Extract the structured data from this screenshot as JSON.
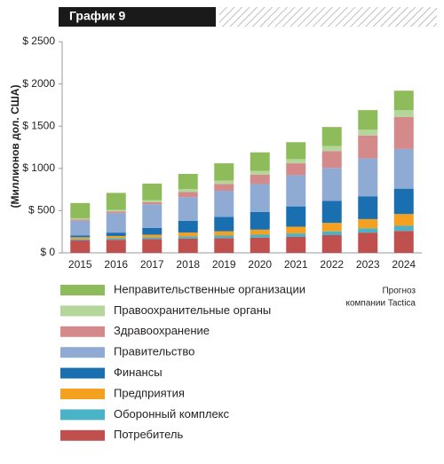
{
  "chart_data": {
    "type": "stacked_bar",
    "title": "График 9",
    "y_label": "(Миллионов дол. США)",
    "note": [
      "Прогноз",
      "компании Tactica"
    ],
    "categories": [
      "2015",
      "2016",
      "2017",
      "2018",
      "2019",
      "2020",
      "2021",
      "2022",
      "2023",
      "2024"
    ],
    "series": [
      {
        "name": "Потребитель",
        "color": "#c0504d",
        "values": [
          150,
          155,
          165,
          170,
          175,
          180,
          190,
          210,
          240,
          260
        ]
      },
      {
        "name": "Оборонный комплекс",
        "color": "#4bb3c8",
        "values": [
          15,
          20,
          20,
          25,
          30,
          35,
          40,
          45,
          50,
          60
        ]
      },
      {
        "name": "Предприятия",
        "color": "#f4a020",
        "values": [
          20,
          25,
          30,
          45,
          50,
          60,
          80,
          100,
          110,
          140
        ]
      },
      {
        "name": "Финансы",
        "color": "#1a6fb0",
        "values": [
          20,
          40,
          80,
          140,
          170,
          210,
          240,
          260,
          270,
          300
        ]
      },
      {
        "name": "Правительство",
        "color": "#8fabd4",
        "values": [
          175,
          230,
          280,
          280,
          310,
          330,
          370,
          390,
          450,
          470
        ]
      },
      {
        "name": "Здравоохранение",
        "color": "#d4898a",
        "values": [
          15,
          20,
          25,
          60,
          80,
          110,
          140,
          200,
          270,
          380
        ]
      },
      {
        "name": "Правоохранительные органы",
        "color": "#b5d69a",
        "values": [
          15,
          20,
          25,
          35,
          40,
          45,
          50,
          60,
          70,
          80
        ]
      },
      {
        "name": "Неправительственные организации",
        "color": "#8fbc5a",
        "values": [
          180,
          200,
          195,
          180,
          205,
          220,
          200,
          225,
          230,
          230
        ]
      }
    ],
    "ylim": [
      0,
      2500
    ],
    "yticks": [
      {
        "value": 0,
        "label": "$ 0"
      },
      {
        "value": 500,
        "label": "$ 500"
      },
      {
        "value": 1000,
        "label": "$ 1000"
      },
      {
        "value": 1500,
        "label": "$ 1500"
      },
      {
        "value": 2000,
        "label": "$ 2000"
      },
      {
        "value": 2500,
        "label": "$ 2500"
      }
    ],
    "grid": false
  }
}
